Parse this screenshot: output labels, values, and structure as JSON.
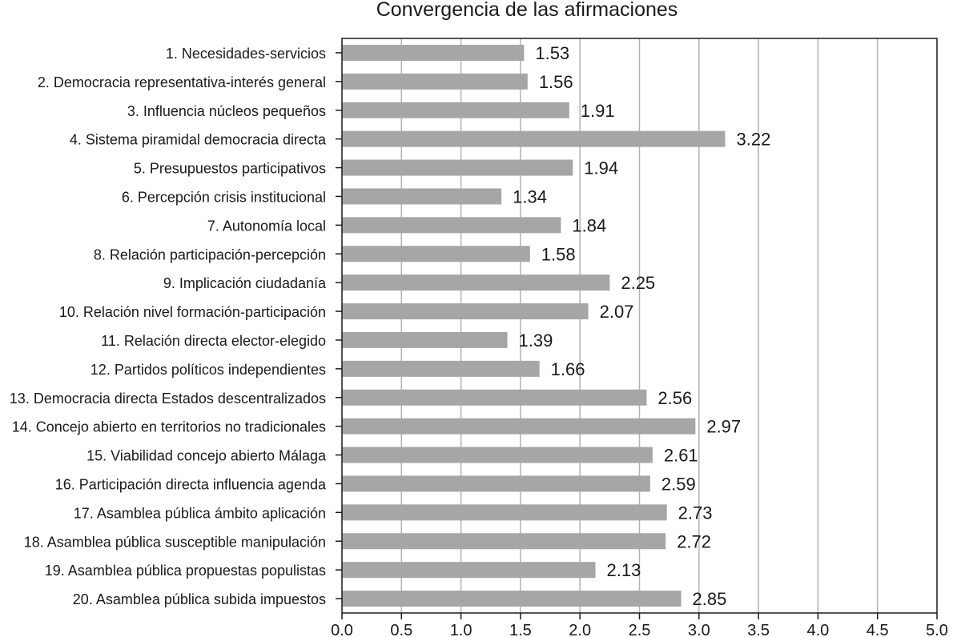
{
  "chart_data": {
    "type": "bar",
    "orientation": "horizontal",
    "title": "Convergencia de las afirmaciones",
    "xlabel": "",
    "ylabel": "",
    "xlim": [
      0,
      5
    ],
    "grid": true,
    "bar_color": "#a6a6a8",
    "grid_color": "#b3b3b3",
    "categories": [
      "1. Necesidades-servicios",
      "2. Democracia representativa-interés general",
      "3. Influencia núcleos pequeños",
      "4. Sistema piramidal democracia directa",
      "5. Presupuestos participativos",
      "6. Percepción crisis institucional",
      "7. Autonomía local",
      "8. Relación participación-percepción",
      "9. Implicación ciudadanía",
      "10. Relación nivel formación-participación",
      "11. Relación directa elector-elegido",
      "12. Partidos políticos independientes",
      "13. Democracia directa Estados descentralizados",
      "14. Concejo abierto en territorios no tradicionales",
      "15. Viabilidad concejo abierto Málaga",
      "16. Participación directa influencia agenda",
      "17. Asamblea pública ámbito aplicación",
      "18. Asamblea pública susceptible manipulación",
      "19. Asamblea pública propuestas populistas",
      "20. Asamblea pública subida impuestos"
    ],
    "values": [
      1.53,
      1.56,
      1.91,
      3.22,
      1.94,
      1.34,
      1.84,
      1.58,
      2.25,
      2.07,
      1.39,
      1.66,
      2.56,
      2.97,
      2.61,
      2.59,
      2.73,
      2.72,
      2.13,
      2.85
    ],
    "value_labels": [
      "1.53",
      "1.56",
      "1.91",
      "3.22",
      "1.94",
      "1.34",
      "1.84",
      "1.58",
      "2.25",
      "2.07",
      "1.39",
      "1.66",
      "2.56",
      "2.97",
      "2.61",
      "2.59",
      "2.73",
      "2.72",
      "2.13",
      "2.85"
    ],
    "x_ticks": [
      0,
      0.5,
      1,
      1.5,
      2,
      2.5,
      3,
      3.5,
      4,
      4.5,
      5
    ],
    "x_tick_labels": [
      "0.0",
      "0.5",
      "1.0",
      "1.5",
      "2.0",
      "2.5",
      "3.0",
      "3.5",
      "4.0",
      "4.5",
      "5.0"
    ]
  }
}
